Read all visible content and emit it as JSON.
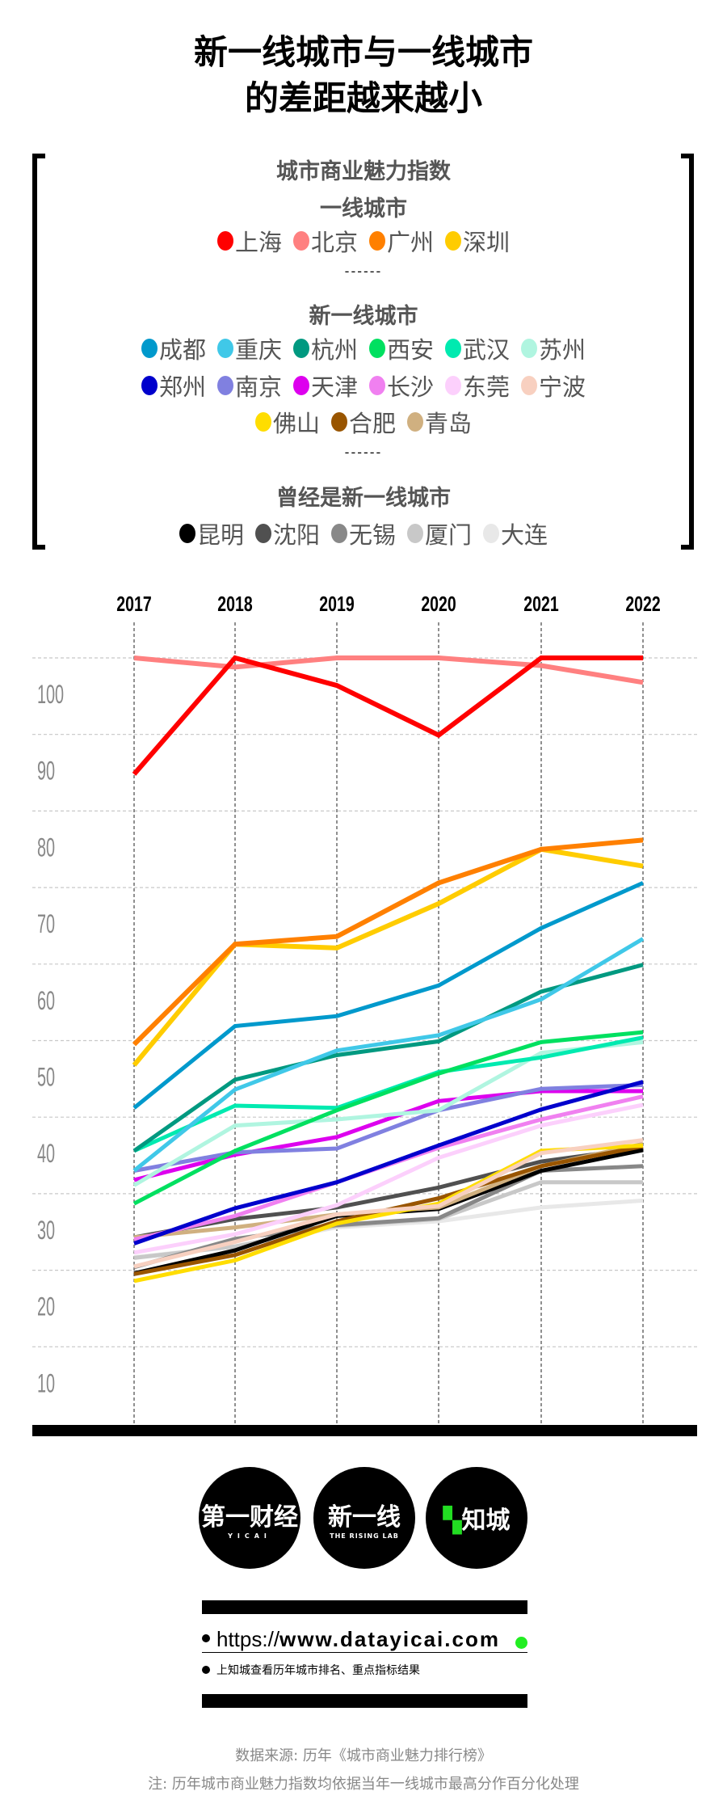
{
  "title": [
    "新一线城市与一线城市",
    "的差距越来越小"
  ],
  "legend": {
    "title": "城市商业魅力指数",
    "separator": "------",
    "groups": [
      {
        "name": "一线城市",
        "rows": [
          [
            "上海",
            "北京",
            "广州",
            "深圳"
          ]
        ]
      },
      {
        "name": "新一线城市",
        "rows": [
          [
            "成都",
            "重庆",
            "杭州",
            "西安",
            "武汉",
            "苏州"
          ],
          [
            "郑州",
            "南京",
            "天津",
            "长沙",
            "东莞",
            "宁波"
          ],
          [
            "佛山",
            "合肥",
            "青岛"
          ]
        ]
      },
      {
        "name": "曾经是新一线城市",
        "rows": [
          [
            "昆明",
            "沈阳",
            "无锡",
            "厦门",
            "大连"
          ]
        ]
      }
    ]
  },
  "chart_data": {
    "type": "line",
    "title": "城市商业魅力指数",
    "x": [
      "2017",
      "2018",
      "2019",
      "2020",
      "2021",
      "2022"
    ],
    "yticks": [
      100,
      90,
      80,
      70,
      60,
      50,
      40,
      30,
      20,
      10
    ],
    "ylim": [
      0,
      100
    ],
    "grid": true,
    "legend_position": "top",
    "series": [
      {
        "name": "上海",
        "color": "#ff0000",
        "values": [
          84.8,
          100,
          96.4,
          89.9,
          100,
          100
        ]
      },
      {
        "name": "北京",
        "color": "#ff8080",
        "values": [
          100,
          98.8,
          100,
          100,
          99,
          96.8
        ]
      },
      {
        "name": "广州",
        "color": "#ff8000",
        "values": [
          49.5,
          62.6,
          63.6,
          70.6,
          75,
          76.2
        ]
      },
      {
        "name": "深圳",
        "color": "#ffcc00",
        "values": [
          46.8,
          62.6,
          62.1,
          67.9,
          75,
          72.8
        ]
      },
      {
        "name": "成都",
        "color": "#0099cc",
        "values": [
          41.2,
          51.9,
          53.2,
          57.2,
          64.7,
          70.6
        ]
      },
      {
        "name": "重庆",
        "color": "#40c8e8",
        "values": [
          33,
          43.6,
          48.7,
          50.7,
          55.4,
          63.3
        ]
      },
      {
        "name": "杭州",
        "color": "#009980",
        "values": [
          35.6,
          44.9,
          48.1,
          49.9,
          56.4,
          59.9
        ]
      },
      {
        "name": "西安",
        "color": "#00e060",
        "values": [
          28.7,
          35.6,
          40.9,
          45.7,
          49.8,
          51.1
        ]
      },
      {
        "name": "武汉",
        "color": "#00eab0",
        "values": [
          35.6,
          41.5,
          41.2,
          45.9,
          47.8,
          50.4
        ]
      },
      {
        "name": "苏州",
        "color": "#b0f5e0",
        "values": [
          31.1,
          38.9,
          39.7,
          40.9,
          48.4,
          49.8
        ]
      },
      {
        "name": "郑州",
        "color": "#0000cc",
        "values": [
          23.5,
          28.1,
          31.5,
          36.3,
          41,
          44.6
        ]
      },
      {
        "name": "南京",
        "color": "#8080e0",
        "values": [
          33,
          35.4,
          35.9,
          40.9,
          43.7,
          44.2
        ]
      },
      {
        "name": "天津",
        "color": "#dd00ee",
        "values": [
          31.8,
          35.1,
          37.4,
          42.1,
          43.4,
          43.4
        ]
      },
      {
        "name": "长沙",
        "color": "#f080f0",
        "values": [
          24,
          27.1,
          31.5,
          36,
          39.7,
          42.7
        ]
      },
      {
        "name": "东莞",
        "color": "#fcd0fc",
        "values": [
          22.3,
          24.7,
          28.5,
          34.7,
          38.9,
          41.6
        ]
      },
      {
        "name": "宁波",
        "color": "#f8d0c0",
        "values": [
          20.5,
          23.7,
          27.3,
          28.4,
          35.3,
          37
        ]
      },
      {
        "name": "佛山",
        "color": "#ffdd00",
        "values": [
          18.6,
          21.3,
          26.1,
          28.7,
          35.6,
          36.3
        ]
      },
      {
        "name": "合肥",
        "color": "#995500",
        "values": [
          19.5,
          22,
          26.4,
          29.4,
          33.6,
          36.2
        ]
      },
      {
        "name": "青岛",
        "color": "#d0b080",
        "values": [
          24.3,
          25.6,
          27.3,
          28.2,
          33.6,
          36.5
        ]
      },
      {
        "name": "昆明",
        "color": "#000000",
        "values": [
          19.6,
          22.6,
          27.1,
          28,
          33,
          35.7
        ]
      },
      {
        "name": "沈阳",
        "color": "#505050",
        "values": [
          24.3,
          26.7,
          28.2,
          30.8,
          34.2,
          36
        ]
      },
      {
        "name": "无锡",
        "color": "#888888",
        "values": [
          20.4,
          24.1,
          25.9,
          26.8,
          33,
          33.6
        ]
      },
      {
        "name": "厦门",
        "color": "#c8c8c8",
        "values": [
          21.6,
          23.1,
          25.8,
          26.7,
          31.5,
          31.5
        ]
      },
      {
        "name": "大连",
        "color": "#e8e8e8",
        "values": [
          21.7,
          23.1,
          25.6,
          26.4,
          28.2,
          29.1
        ]
      }
    ]
  },
  "logos": [
    "第一财经",
    "YICAI",
    "新一线",
    "THE RISING LAB",
    "知城"
  ],
  "promo": {
    "url_prefix": "https://",
    "url_main": "www.datayicai.com",
    "note": "上知城查看历年城市排名、重点指标结果"
  },
  "footer": {
    "source": "数据来源: 历年《城市商业魅力排行榜》",
    "note": "注: 历年城市商业魅力指数均依据当年一线城市最高分作百分化处理"
  }
}
